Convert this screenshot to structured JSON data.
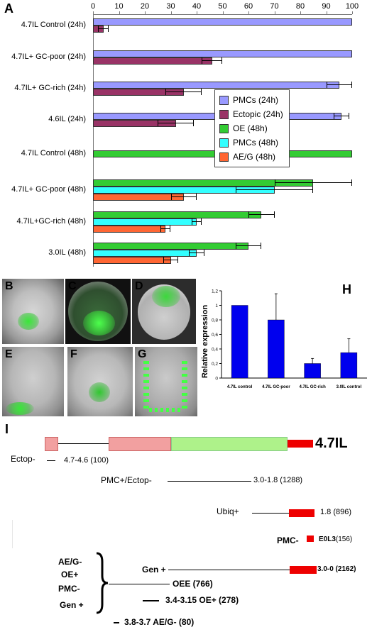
{
  "panelA": {
    "letter": "A",
    "chart_data": {
      "type": "bar",
      "orientation": "horizontal",
      "x_ticks": [
        "0",
        "10",
        "20",
        "30",
        "40",
        "50",
        "60",
        "70",
        "80",
        "90",
        "100"
      ],
      "xlim": [
        0,
        100
      ],
      "grid": false,
      "legend_position": "right-middle",
      "series_meta": [
        {
          "name": "PMCs (24h)",
          "color": "#9999ff"
        },
        {
          "name": "Ectopic (24h)",
          "color": "#993366"
        },
        {
          "name": "OE (48h)",
          "color": "#33cc33"
        },
        {
          "name": "PMCs (48h)",
          "color": "#33ffff"
        },
        {
          "name": "AE/G (48h)",
          "color": "#ff6633"
        }
      ],
      "groups": [
        {
          "label": "4.7IL Control (24h)",
          "bars": [
            {
              "series": 0,
              "value": 100,
              "err": 0
            },
            {
              "series": 1,
              "value": 4,
              "err": 2
            }
          ]
        },
        {
          "label": "4.7IL+ GC-poor (24h)",
          "bars": [
            {
              "series": 0,
              "value": 100,
              "err": 0
            },
            {
              "series": 1,
              "value": 46,
              "err": 4
            }
          ]
        },
        {
          "label": "4.7IL+ GC-rich (24h)",
          "bars": [
            {
              "series": 0,
              "value": 95,
              "err": 5
            },
            {
              "series": 1,
              "value": 35,
              "err": 7
            }
          ]
        },
        {
          "label": "4.6IL (24h)",
          "bars": [
            {
              "series": 0,
              "value": 96,
              "err": 3
            },
            {
              "series": 1,
              "value": 32,
              "err": 7
            }
          ]
        },
        {
          "label": "4.7IL Control (48h)",
          "bars": [
            {
              "series": 2,
              "value": 100,
              "err": 0
            }
          ]
        },
        {
          "label": "4.7IL+ GC-poor (48h)",
          "bars": [
            {
              "series": 2,
              "value": 85,
              "err": 15
            },
            {
              "series": 3,
              "value": 70,
              "err": 15
            },
            {
              "series": 4,
              "value": 35,
              "err": 5
            }
          ]
        },
        {
          "label": "4.7IL+GC-rich (48h)",
          "bars": [
            {
              "series": 2,
              "value": 65,
              "err": 5
            },
            {
              "series": 3,
              "value": 40,
              "err": 2
            },
            {
              "series": 4,
              "value": 28,
              "err": 2
            }
          ]
        },
        {
          "label": "3.0IL (48h)",
          "bars": [
            {
              "series": 2,
              "value": 60,
              "err": 5
            },
            {
              "series": 3,
              "value": 40,
              "err": 3
            },
            {
              "series": 4,
              "value": 30,
              "err": 3
            }
          ]
        }
      ]
    }
  },
  "micrographs": [
    {
      "letter": "B"
    },
    {
      "letter": "C"
    },
    {
      "letter": "D"
    },
    {
      "letter": "E"
    },
    {
      "letter": "F"
    },
    {
      "letter": "G"
    }
  ],
  "panelH": {
    "letter": "H",
    "chart_data": {
      "type": "bar",
      "categories": [
        "4.7IL control",
        "4.7IL GC-poor",
        "4.7IL GC-rich",
        "3.0IL control"
      ],
      "values": [
        1.0,
        0.8,
        0.2,
        0.35
      ],
      "errors": [
        0,
        0.36,
        0.07,
        0.19
      ],
      "ylabel": "Relative expression",
      "y_ticks": [
        "0",
        "0,2",
        "0,4",
        "0,6",
        "0,8",
        "1",
        "1,2"
      ],
      "ylim": [
        0,
        1.2
      ],
      "color": "#0000ee",
      "grid": false
    }
  },
  "panelI": {
    "letter": "I",
    "construct_name": "4.7IL",
    "ectop": "Ectop-",
    "frag1": "4.7-4.6 (100)",
    "pmc_ectop": "PMC+/Ectop-",
    "frag2": "3.0-1.8 (1288)",
    "ubiq": "Ubiq+",
    "frag3": "1.8 (896)",
    "pmc_minus": "PMC-",
    "frag4": "E0L3",
    "frag4_len": "(156)",
    "gen_plus": "Gen +",
    "frag5": "3.0-0 (2162)",
    "group_labels": [
      "AE/G-",
      "OE+",
      "PMC-",
      "Gen +"
    ],
    "frag6": "OEE (766)",
    "frag7": "3.4-3.15 OE+ (278)",
    "frag8": "3.8-3.7 AE/G- (80)"
  }
}
